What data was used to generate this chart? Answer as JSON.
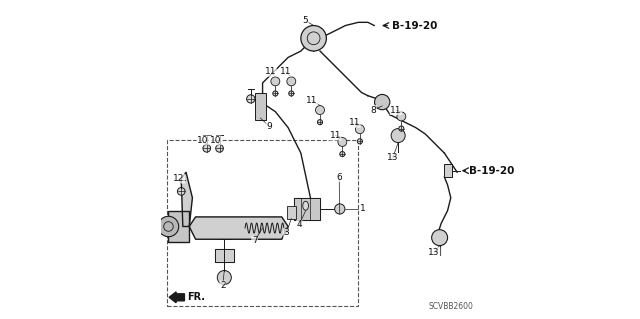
{
  "bg_color": "#ffffff",
  "part_number": "SCVBB2600",
  "b1920_label": "B-19-20",
  "fr_label": "FR.",
  "line_color": "#1a1a1a",
  "dashed_box_color": "#555555",
  "label_color": "#111111"
}
